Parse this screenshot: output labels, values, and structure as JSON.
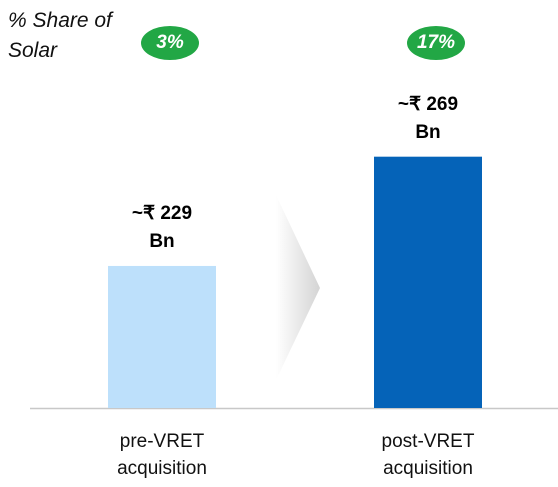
{
  "chart_data": {
    "type": "bar",
    "categories": [
      "pre-VRET acquisition",
      "post-VRET acquisition"
    ],
    "values": [
      229,
      269
    ],
    "value_labels": [
      "~₹ 229 Bn",
      "~₹ 269 Bn"
    ],
    "colors": [
      "#bde0fb",
      "#0563b8"
    ],
    "ylim": [
      177,
      300
    ],
    "solar_share": {
      "label": "% Share of Solar",
      "values": [
        3,
        17
      ],
      "value_labels": [
        "3%",
        "17%"
      ],
      "color": "#22a745"
    }
  }
}
